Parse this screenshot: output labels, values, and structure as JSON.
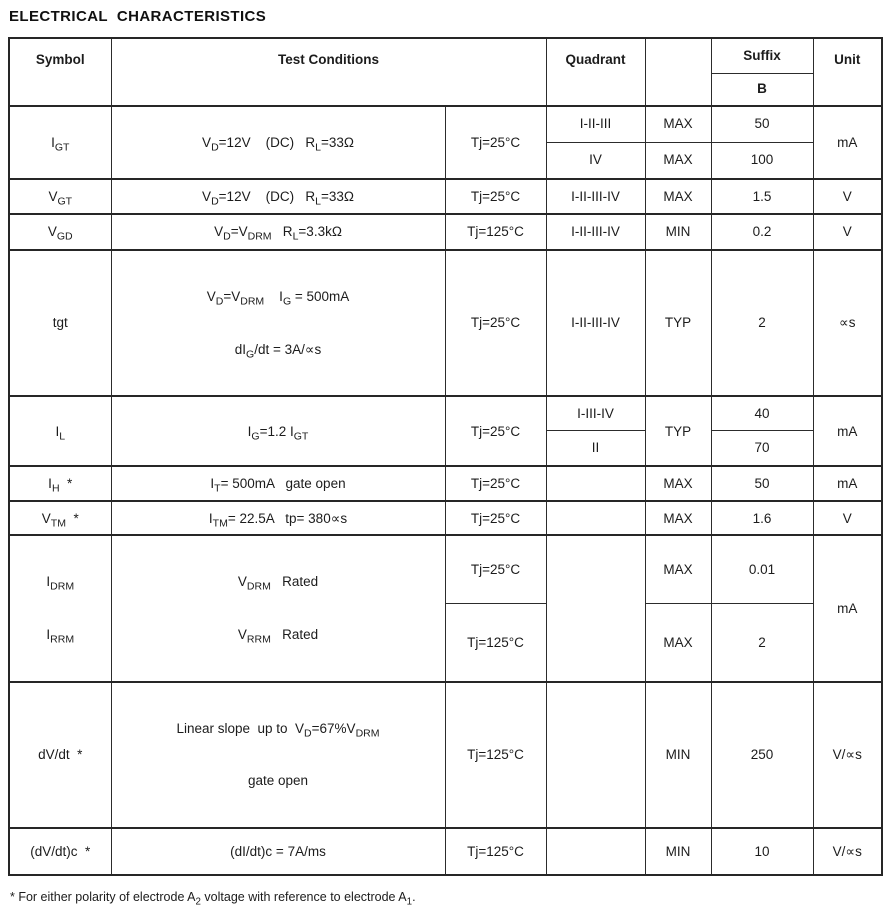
{
  "title": "ELECTRICAL  CHARACTERISTICS",
  "header": {
    "symbol": "Symbol",
    "test_conditions": "Test Conditions",
    "quadrant": "Quadrant",
    "limit": "",
    "suffix": "Suffix",
    "suffix_value": "B",
    "unit": "Unit"
  },
  "rows": [
    {
      "symbol": "I_{GT}",
      "conditions": [
        "V_{D}=12V    (DC)   R_{L}=33Ω"
      ],
      "tj": "Tj=25°C",
      "unit": "mA",
      "subrows": [
        {
          "quadrant": "I-II-III",
          "limit": "MAX",
          "value": "50"
        },
        {
          "quadrant": "IV",
          "limit": "MAX",
          "value": "100"
        }
      ]
    },
    {
      "symbol": "V_{GT}",
      "conditions": [
        "V_{D}=12V    (DC)   R_{L}=33Ω"
      ],
      "tj": "Tj=25°C",
      "unit": "V",
      "subrows": [
        {
          "quadrant": "I-II-III-IV",
          "limit": "MAX",
          "value": "1.5"
        }
      ]
    },
    {
      "symbol": "V_{GD}",
      "conditions": [
        "V_{D}=V_{DRM}   R_{L}=3.3kΩ"
      ],
      "tj": "Tj=125°C",
      "unit": "V",
      "subrows": [
        {
          "quadrant": "I-II-III-IV",
          "limit": "MIN",
          "value": "0.2"
        }
      ]
    },
    {
      "symbol": "tgt",
      "conditions": [
        "V_{D}=V_{DRM}    I_{G} = 500mA",
        "dI_{G}/dt = 3A/∝s"
      ],
      "tj": "Tj=25°C",
      "unit": "∝s",
      "subrows": [
        {
          "quadrant": "I-II-III-IV",
          "limit": "TYP",
          "value": "2"
        }
      ]
    },
    {
      "symbol": "I_{L}",
      "conditions": [
        "I_{G}=1.2 I_{GT}"
      ],
      "tj": "Tj=25°C",
      "unit": "mA",
      "limit_span": "TYP",
      "subrows": [
        {
          "quadrant": "I-III-IV",
          "value": "40"
        },
        {
          "quadrant": "II",
          "value": "70"
        }
      ]
    },
    {
      "symbol": "I_{H}  *",
      "conditions": [
        "I_{T}= 500mA   gate open"
      ],
      "tj": "Tj=25°C",
      "unit": "mA",
      "subrows": [
        {
          "quadrant": "",
          "limit": "MAX",
          "value": "50"
        }
      ]
    },
    {
      "symbol": "V_{TM}  *",
      "conditions": [
        "I_{TM}= 22.5A   tp= 380∝s"
      ],
      "tj": "Tj=25°C",
      "unit": "V",
      "subrows": [
        {
          "quadrant": "",
          "limit": "MAX",
          "value": "1.6"
        }
      ]
    },
    {
      "symbol_lines": [
        "I_{DRM}",
        "I_{RRM}"
      ],
      "conditions": [
        "V_{DRM}   Rated",
        "V_{RRM}   Rated"
      ],
      "quadrant_span": "",
      "unit": "mA",
      "subrows": [
        {
          "tj": "Tj=25°C",
          "limit": "MAX",
          "value": "0.01"
        },
        {
          "tj": "Tj=125°C",
          "limit": "MAX",
          "value": "2"
        }
      ]
    },
    {
      "symbol": "dV/dt  *",
      "conditions": [
        "Linear slope  up to  V_{D}=67%V_{DRM}",
        "gate open"
      ],
      "tj": "Tj=125°C",
      "unit": "V/∝s",
      "subrows": [
        {
          "quadrant": "",
          "limit": "MIN",
          "value": "250"
        }
      ]
    },
    {
      "symbol": "(dV/dt)c  *",
      "conditions": [
        "(dI/dt)c = 7A/ms"
      ],
      "tj": "Tj=125°C",
      "unit": "V/∝s",
      "subrows": [
        {
          "quadrant": "",
          "limit": "MIN",
          "value": "10"
        }
      ]
    }
  ],
  "footnote": "* For  either polarity  of electrode  A_{2}  voltage with reference  to electrode  A_{1}."
}
